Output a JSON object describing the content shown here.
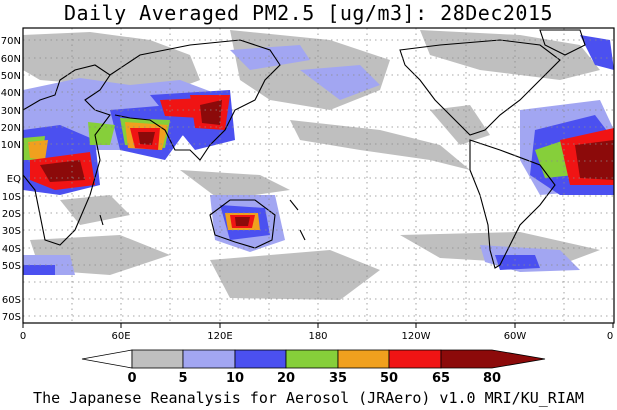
{
  "title": "Daily Averaged PM2.5 [ug/m3]: 28Dec2015",
  "credit": "The Japanese Reanalysis for Aerosol (JRAero) v1.0 MRI/KU_RIAM",
  "lat_labels": [
    "70N",
    "60N",
    "50N",
    "40N",
    "30N",
    "20N",
    "10N",
    "EQ",
    "10S",
    "20S",
    "30S",
    "40S",
    "50S",
    "60S",
    "70S"
  ],
  "lon_labels": [
    "0",
    "60E",
    "120E",
    "180",
    "120W",
    "60W",
    "0"
  ],
  "colorbar": {
    "ticks": [
      "0",
      "5",
      "10",
      "20",
      "35",
      "50",
      "65",
      "80"
    ],
    "colors": [
      "#ffffff",
      "#bfbfbf",
      "#a2a6f2",
      "#4b50f0",
      "#86cf3a",
      "#f0a01e",
      "#f01414",
      "#8c0a0a"
    ]
  }
}
